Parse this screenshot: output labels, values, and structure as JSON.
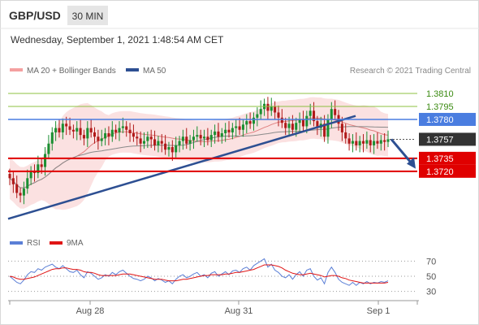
{
  "header": {
    "pair": "GBP/USD",
    "timeframe": "30 MIN",
    "datetime": "Wednesday, September 1, 2021 1:48:54 AM CET"
  },
  "legend": {
    "bollinger": "MA 20 + Bollinger Bands",
    "ma50": "MA 50",
    "credit": "Research © 2021 Trading Central"
  },
  "rsi_legend": {
    "rsi": "RSI",
    "ma": "9MA"
  },
  "colors": {
    "bull_candle": "#1b8f32",
    "bear_candle": "#b01919",
    "bollinger_fill": "#f8c8c8",
    "ma20": "#e08080",
    "ma50": "#8a8a8a",
    "trendline": "#2d4f92",
    "support": "#e00000",
    "resistance_green": "#8cc040",
    "resistance_blue": "#4a7de0",
    "rsi_line": "#5b7fd6",
    "rsi_ma": "#e01515"
  },
  "chart_data": [
    {
      "type": "candlestick",
      "title": "GBP/USD 30 MIN",
      "ylim": [
        1.3655,
        1.3826
      ],
      "x_ticks": [
        "Aug 28",
        "Aug 31",
        "Sep 1"
      ],
      "levels": [
        {
          "label": "1.3810",
          "value": 1.381,
          "kind": "resistance",
          "color": "#8cc040"
        },
        {
          "label": "1.3795",
          "value": 1.3795,
          "kind": "resistance",
          "color": "#8cc040"
        },
        {
          "label": "1.3780",
          "value": 1.378,
          "kind": "pivot",
          "color": "#4a7de0"
        },
        {
          "label": "1.3757",
          "value": 1.3757,
          "kind": "last",
          "color": "#333333"
        },
        {
          "label": "1.3735",
          "value": 1.3735,
          "kind": "support",
          "color": "#e00000"
        },
        {
          "label": "1.3720",
          "value": 1.372,
          "kind": "support",
          "color": "#e00000"
        }
      ],
      "indicators": [
        "MA 20 + Bollinger Bands",
        "MA 50"
      ],
      "forecast": "down",
      "close_path": [
        1.3712,
        1.3705,
        1.3695,
        1.3692,
        1.37,
        1.3712,
        1.372,
        1.3718,
        1.3728,
        1.3725,
        1.374,
        1.3752,
        1.3765,
        1.377,
        1.3765,
        1.3775,
        1.3772,
        1.3768,
        1.3766,
        1.377,
        1.3762,
        1.3758,
        1.377,
        1.3765,
        1.376,
        1.3755,
        1.3758,
        1.3764,
        1.376,
        1.3768,
        1.3765,
        1.377,
        1.3772,
        1.3768,
        1.3764,
        1.376,
        1.3758,
        1.3752,
        1.3755,
        1.376,
        1.3757,
        1.375,
        1.3755,
        1.3752,
        1.3745,
        1.3748,
        1.3742,
        1.375,
        1.3755,
        1.376,
        1.3752,
        1.3756,
        1.376,
        1.3762,
        1.3758,
        1.376,
        1.3756,
        1.3762,
        1.3766,
        1.376,
        1.3764,
        1.3768,
        1.3765,
        1.377,
        1.3772,
        1.3768,
        1.3774,
        1.3778,
        1.3775,
        1.3782,
        1.3786,
        1.3792,
        1.3798,
        1.379,
        1.3795,
        1.3788,
        1.3782,
        1.3776,
        1.377,
        1.3775,
        1.3768,
        1.3776,
        1.378,
        1.3772,
        1.3784,
        1.379,
        1.3778,
        1.377,
        1.3775,
        1.376,
        1.378,
        1.3792,
        1.3785,
        1.3775,
        1.3765,
        1.3758,
        1.3752,
        1.3755,
        1.375,
        1.3755,
        1.3752,
        1.3756,
        1.375,
        1.3755,
        1.3752,
        1.3756,
        1.3754,
        1.3757
      ]
    },
    {
      "type": "line",
      "title": "RSI",
      "ylim": [
        20,
        80
      ],
      "y_ticks": [
        70,
        50,
        30
      ],
      "series": [
        {
          "name": "RSI",
          "values": [
            50,
            46,
            42,
            40,
            45,
            52,
            56,
            55,
            60,
            58,
            62,
            64,
            66,
            62,
            60,
            64,
            60,
            56,
            55,
            58,
            52,
            48,
            56,
            54,
            50,
            46,
            48,
            52,
            50,
            55,
            52,
            56,
            58,
            54,
            50,
            47,
            46,
            44,
            46,
            50,
            48,
            44,
            47,
            45,
            42,
            44,
            40,
            46,
            50,
            52,
            48,
            50,
            53,
            55,
            50,
            52,
            48,
            54,
            56,
            50,
            53,
            56,
            52,
            57,
            58,
            55,
            60,
            62,
            58,
            64,
            67,
            70,
            73,
            62,
            66,
            58,
            55,
            50,
            48,
            52,
            46,
            52,
            56,
            50,
            58,
            60,
            50,
            45,
            48,
            40,
            55,
            62,
            55,
            46,
            42,
            40,
            38,
            42,
            38,
            42,
            40,
            43,
            40,
            42,
            41,
            43,
            42,
            44
          ]
        },
        {
          "name": "9MA",
          "values": [
            50,
            49,
            47,
            46,
            46,
            47,
            48,
            49,
            51,
            53,
            55,
            57,
            59,
            60,
            60,
            61,
            61,
            60,
            59,
            59,
            58,
            56,
            55,
            55,
            54,
            52,
            51,
            51,
            51,
            51,
            51,
            52,
            53,
            53,
            53,
            52,
            51,
            50,
            49,
            48,
            47,
            46,
            46,
            46,
            45,
            44,
            44,
            44,
            45,
            46,
            46,
            47,
            48,
            49,
            50,
            51,
            51,
            52,
            52,
            52,
            52,
            53,
            53,
            54,
            55,
            55,
            56,
            57,
            58,
            59,
            61,
            63,
            65,
            65,
            65,
            64,
            63,
            61,
            58,
            56,
            54,
            53,
            52,
            52,
            53,
            54,
            53,
            52,
            51,
            49,
            50,
            51,
            51,
            50,
            48,
            47,
            45,
            44,
            43,
            42,
            41,
            41,
            41,
            41,
            41,
            41,
            41,
            42
          ]
        }
      ]
    }
  ]
}
